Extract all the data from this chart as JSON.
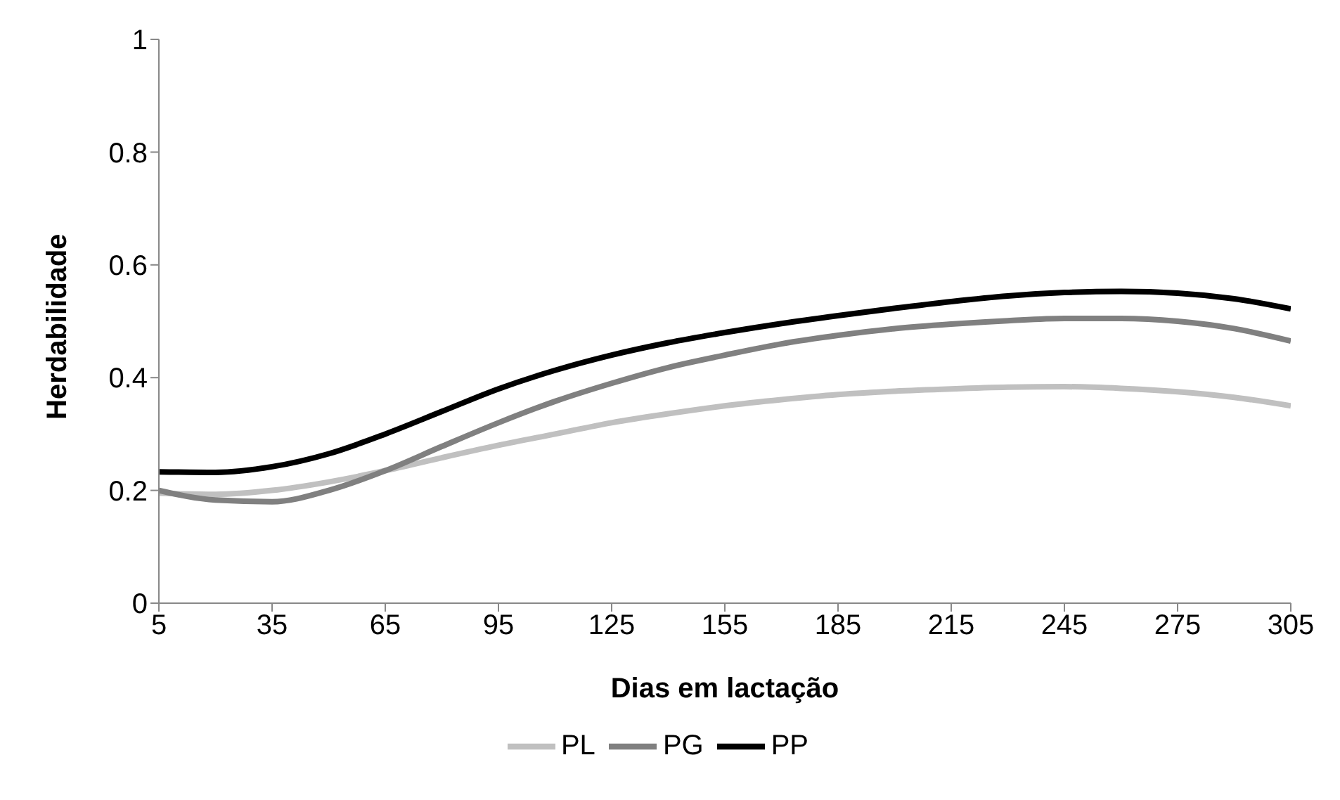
{
  "chart_data": {
    "type": "line",
    "xlabel": "Dias em lactação",
    "ylabel": "Herdabilidade",
    "x": [
      5,
      20,
      35,
      50,
      65,
      80,
      95,
      110,
      125,
      140,
      155,
      170,
      185,
      200,
      215,
      230,
      245,
      260,
      275,
      290,
      305
    ],
    "series": [
      {
        "name": "PL",
        "color": "#c0c0c0",
        "values": [
          0.195,
          0.193,
          0.2,
          0.215,
          0.235,
          0.258,
          0.28,
          0.3,
          0.32,
          0.336,
          0.35,
          0.361,
          0.37,
          0.376,
          0.38,
          0.383,
          0.384,
          0.381,
          0.375,
          0.365,
          0.35
        ]
      },
      {
        "name": "PG",
        "color": "#808080",
        "values": [
          0.2,
          0.183,
          0.18,
          0.2,
          0.235,
          0.278,
          0.32,
          0.358,
          0.39,
          0.418,
          0.44,
          0.46,
          0.475,
          0.487,
          0.495,
          0.501,
          0.505,
          0.505,
          0.5,
          0.487,
          0.465
        ]
      },
      {
        "name": "PP",
        "color": "#000000",
        "values": [
          0.233,
          0.232,
          0.242,
          0.265,
          0.3,
          0.34,
          0.38,
          0.413,
          0.44,
          0.462,
          0.48,
          0.496,
          0.51,
          0.523,
          0.535,
          0.545,
          0.551,
          0.553,
          0.55,
          0.54,
          0.522
        ]
      }
    ],
    "xlim": [
      5,
      305
    ],
    "xticks": [
      5,
      35,
      65,
      95,
      125,
      155,
      185,
      215,
      245,
      275,
      305
    ],
    "ylim": [
      0,
      1
    ],
    "yticks": [
      0,
      0.2,
      0.4,
      0.6,
      0.8,
      1
    ],
    "grid": false,
    "legend": "bottom",
    "marker": "none",
    "line_style": "solid"
  }
}
